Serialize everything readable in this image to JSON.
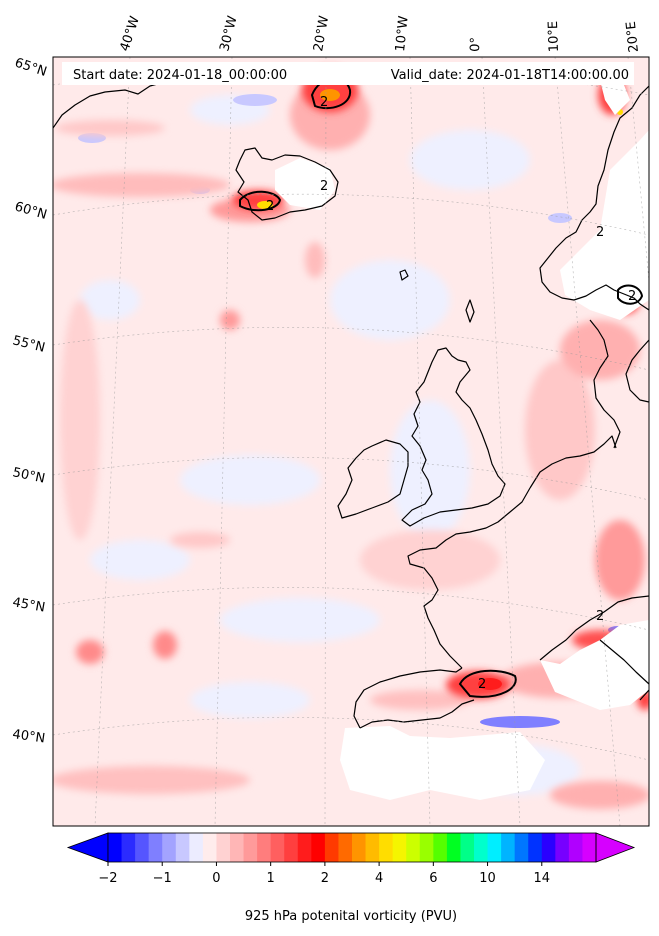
{
  "header": {
    "start_date": "Start date: 2024-01-18_00:00:00",
    "valid_date": "Valid_date: 2024-01-18T14:00:00.00"
  },
  "lon_labels": [
    "40°W",
    "30°W",
    "20°W",
    "10°W",
    "0°",
    "10°E",
    "20°E"
  ],
  "lat_labels": [
    "65°N",
    "60°N",
    "55°N",
    "50°N",
    "45°N",
    "40°N"
  ],
  "contour_labels": [
    "2",
    "2",
    "2",
    "2",
    "2",
    "2",
    "2"
  ],
  "colorbar": {
    "label": "925 hPa potenital vorticity (PVU)",
    "tick_labels": [
      "−2",
      "−1",
      "0",
      "1",
      "2",
      "4",
      "6",
      "10",
      "14"
    ],
    "colors": [
      "#0000ff",
      "#2b2bff",
      "#5555ff",
      "#7f7fff",
      "#a3a3ff",
      "#c8c8ff",
      "#ececff",
      "#ffecec",
      "#ffd2d2",
      "#ffb6b6",
      "#ff9a9a",
      "#ff7d7d",
      "#ff5f5f",
      "#ff3f3f",
      "#ff1c1c",
      "#ff0000",
      "#ff3a00",
      "#ff6a00",
      "#ff9400",
      "#ffbb00",
      "#ffdd00",
      "#f5f500",
      "#ccff00",
      "#99ff00",
      "#55ff00",
      "#00ff22",
      "#00ff88",
      "#00ffcc",
      "#00eeff",
      "#00b4ff",
      "#0076ff",
      "#0033ff",
      "#2a00ff",
      "#7700ff",
      "#b000ff",
      "#d600ff"
    ]
  },
  "chart_data": {
    "type": "heatmap",
    "variable": "925 hPa potenital vorticity (PVU)",
    "levels": [
      -2,
      -1,
      0,
      1,
      2,
      4,
      6,
      10,
      14
    ],
    "contour_line_value": 2
  }
}
